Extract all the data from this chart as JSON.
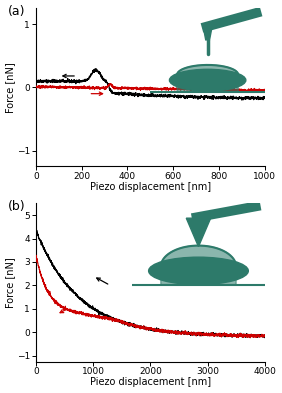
{
  "panel_a": {
    "xlim": [
      0,
      1000
    ],
    "ylim": [
      -1.25,
      1.25
    ],
    "xticks": [
      0,
      200,
      400,
      600,
      800,
      1000
    ],
    "yticks": [
      -1,
      0,
      1
    ],
    "xlabel": "Piezo displacement [nm]",
    "ylabel": "Force [nN]",
    "label": "(a)"
  },
  "panel_b": {
    "xlim": [
      0,
      4000
    ],
    "ylim": [
      -1.25,
      5.5
    ],
    "xticks": [
      0,
      1000,
      2000,
      3000,
      4000
    ],
    "yticks": [
      -1,
      0,
      1,
      2,
      3,
      4,
      5
    ],
    "xlabel": "Piezo displacement [nm]",
    "ylabel": "Force [nN]",
    "label": "(b)"
  },
  "approach_color": "#000000",
  "retract_color": "#cc0000",
  "background_color": "#ffffff",
  "teal_color": "#2d7a6a"
}
